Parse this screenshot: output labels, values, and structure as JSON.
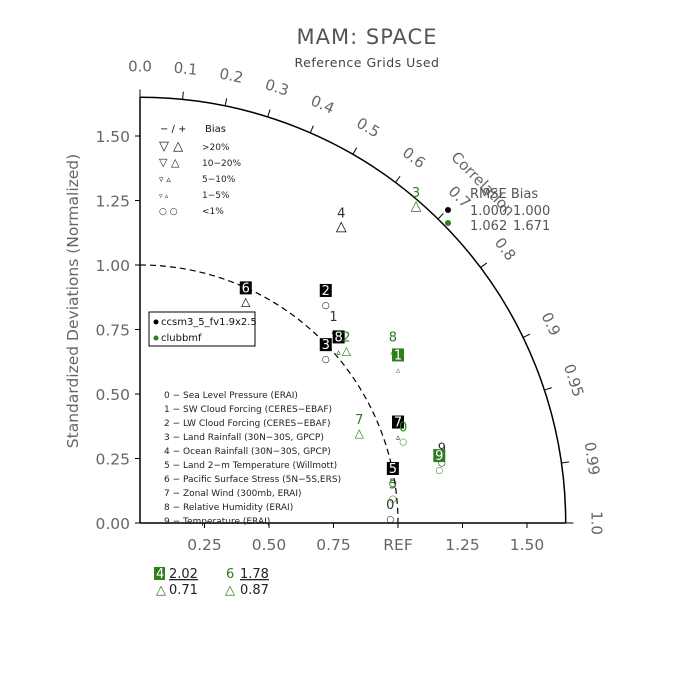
{
  "chart": {
    "title": "MAM: SPACE",
    "subtitle": "Reference Grids Used",
    "ylabel": "Standardized Deviations (Normalized)",
    "yticks": [
      "0.00",
      "0.25",
      "0.50",
      "0.75",
      "1.00",
      "1.25",
      "1.50"
    ],
    "xticks": [
      "0.25",
      "0.50",
      "0.75",
      "REF",
      "1.25",
      "1.50"
    ],
    "arc_label": "Correlation",
    "correlation_ticks": [
      "0.0",
      "0.1",
      "0.2",
      "0.3",
      "0.4",
      "0.5",
      "0.6",
      "0.7",
      "0.8",
      "0.9",
      "0.95",
      "0.99",
      "1.0"
    ],
    "bias_legend": {
      "header_sign": "− / +",
      "header_label": "Bias",
      "rows": [
        ">20%",
        "10−20%",
        "5−10%",
        "1−5%",
        "<1%"
      ]
    },
    "rmse_bias": {
      "header": "RMSE  Bias",
      "rows": [
        {
          "rmse": "1.000",
          "bias": "1.000",
          "color": "#222222"
        },
        {
          "rmse": "1.062",
          "bias": "1.671",
          "color": "#555555"
        }
      ]
    },
    "models_legend": [
      "ccsm3_5_fv1.9x2.5",
      "clubbmf"
    ],
    "variables": [
      "0 − Sea Level Pressure (ERAI)",
      "1 − SW Cloud Forcing (CERES−EBAF)",
      "2 − LW Cloud Forcing (CERES−EBAF)",
      "3 − Land Rainfall (30N−30S, GPCP)",
      "4 − Ocean Rainfall (30N−30S, GPCP)",
      "5 − Land 2−m Temperature (Willmott)",
      "6 − Pacific Surface Stress (5N−5S,ERS)",
      "7 − Zonal Wind (300mb, ERAI)",
      "8 − Relative Humidity (ERAI)",
      "9 − Temperature (ERAI)"
    ],
    "offscale": [
      {
        "label": "4",
        "value": "2.02",
        "bias": "0.71"
      },
      {
        "label": "6",
        "value": "1.78",
        "bias": "0.87"
      }
    ]
  },
  "colors": {
    "model1": "#000000",
    "model2": "#2e7d1f",
    "axis": "#000000",
    "text": "#666666"
  },
  "chart_data": {
    "type": "scatter",
    "plot_kind": "taylor_diagram",
    "x_axis": "normalized standard deviation",
    "y_axis": "normalized standard deviation",
    "radial_range": [
      0,
      1.65
    ],
    "series": [
      {
        "name": "ccsm3_5_fv1.9x2.5",
        "color": "#000000",
        "points": [
          {
            "label": "0",
            "x": 0.97,
            "y": 0.05,
            "bias": "<1%",
            "boxed": false
          },
          {
            "label": "1",
            "x": 0.75,
            "y": 0.78,
            "bias": "1−5%",
            "boxed": false
          },
          {
            "label": "2",
            "x": 0.72,
            "y": 0.88,
            "bias": "<1%",
            "boxed": true
          },
          {
            "label": "3",
            "x": 0.72,
            "y": 0.67,
            "bias": "<1%",
            "boxed": true
          },
          {
            "label": "4",
            "x": 0.78,
            "y": 1.18,
            "bias": ">20%",
            "boxed": false
          },
          {
            "label": "5",
            "x": 0.98,
            "y": 0.19,
            "bias": "<1%",
            "boxed": true
          },
          {
            "label": "6",
            "x": 0.41,
            "y": 0.89,
            "bias": "10−20%",
            "boxed": true
          },
          {
            "label": "7",
            "x": 1.0,
            "y": 0.37,
            "bias": "1−5%",
            "boxed": true
          },
          {
            "label": "8",
            "x": 0.77,
            "y": 0.7,
            "bias": "1−5%",
            "boxed": true
          },
          {
            "label": "9",
            "x": 1.17,
            "y": 0.27,
            "bias": "<1%",
            "boxed": false
          }
        ]
      },
      {
        "name": "clubbmf",
        "color": "#2e7d1f",
        "points": [
          {
            "label": "0",
            "x": 1.02,
            "y": 0.35,
            "bias": "<1%",
            "boxed": false
          },
          {
            "label": "1",
            "x": 1.0,
            "y": 0.63,
            "bias": "1−5%",
            "boxed": true
          },
          {
            "label": "2",
            "x": 0.8,
            "y": 0.7,
            "bias": "10−20%",
            "boxed": false
          },
          {
            "label": "3",
            "x": 1.07,
            "y": 1.26,
            "bias": ">20%",
            "boxed": false
          },
          {
            "label": "5",
            "x": 0.98,
            "y": 0.13,
            "bias": "<1%",
            "boxed": false
          },
          {
            "label": "7",
            "x": 0.85,
            "y": 0.38,
            "bias": "10−20%",
            "boxed": false
          },
          {
            "label": "8",
            "x": 0.98,
            "y": 0.7,
            "bias": "5−10%",
            "boxed": false
          },
          {
            "label": "9",
            "x": 1.16,
            "y": 0.24,
            "bias": "<1%",
            "boxed": true
          }
        ]
      }
    ],
    "reference": {
      "x": 1.0,
      "y": 0.0
    },
    "rmse_bias_points": [
      {
        "rmse": 1.0,
        "bias": 1.0,
        "corr": 0.7
      },
      {
        "rmse": 1.062,
        "bias": 1.671,
        "corr": 0.72
      }
    ]
  }
}
